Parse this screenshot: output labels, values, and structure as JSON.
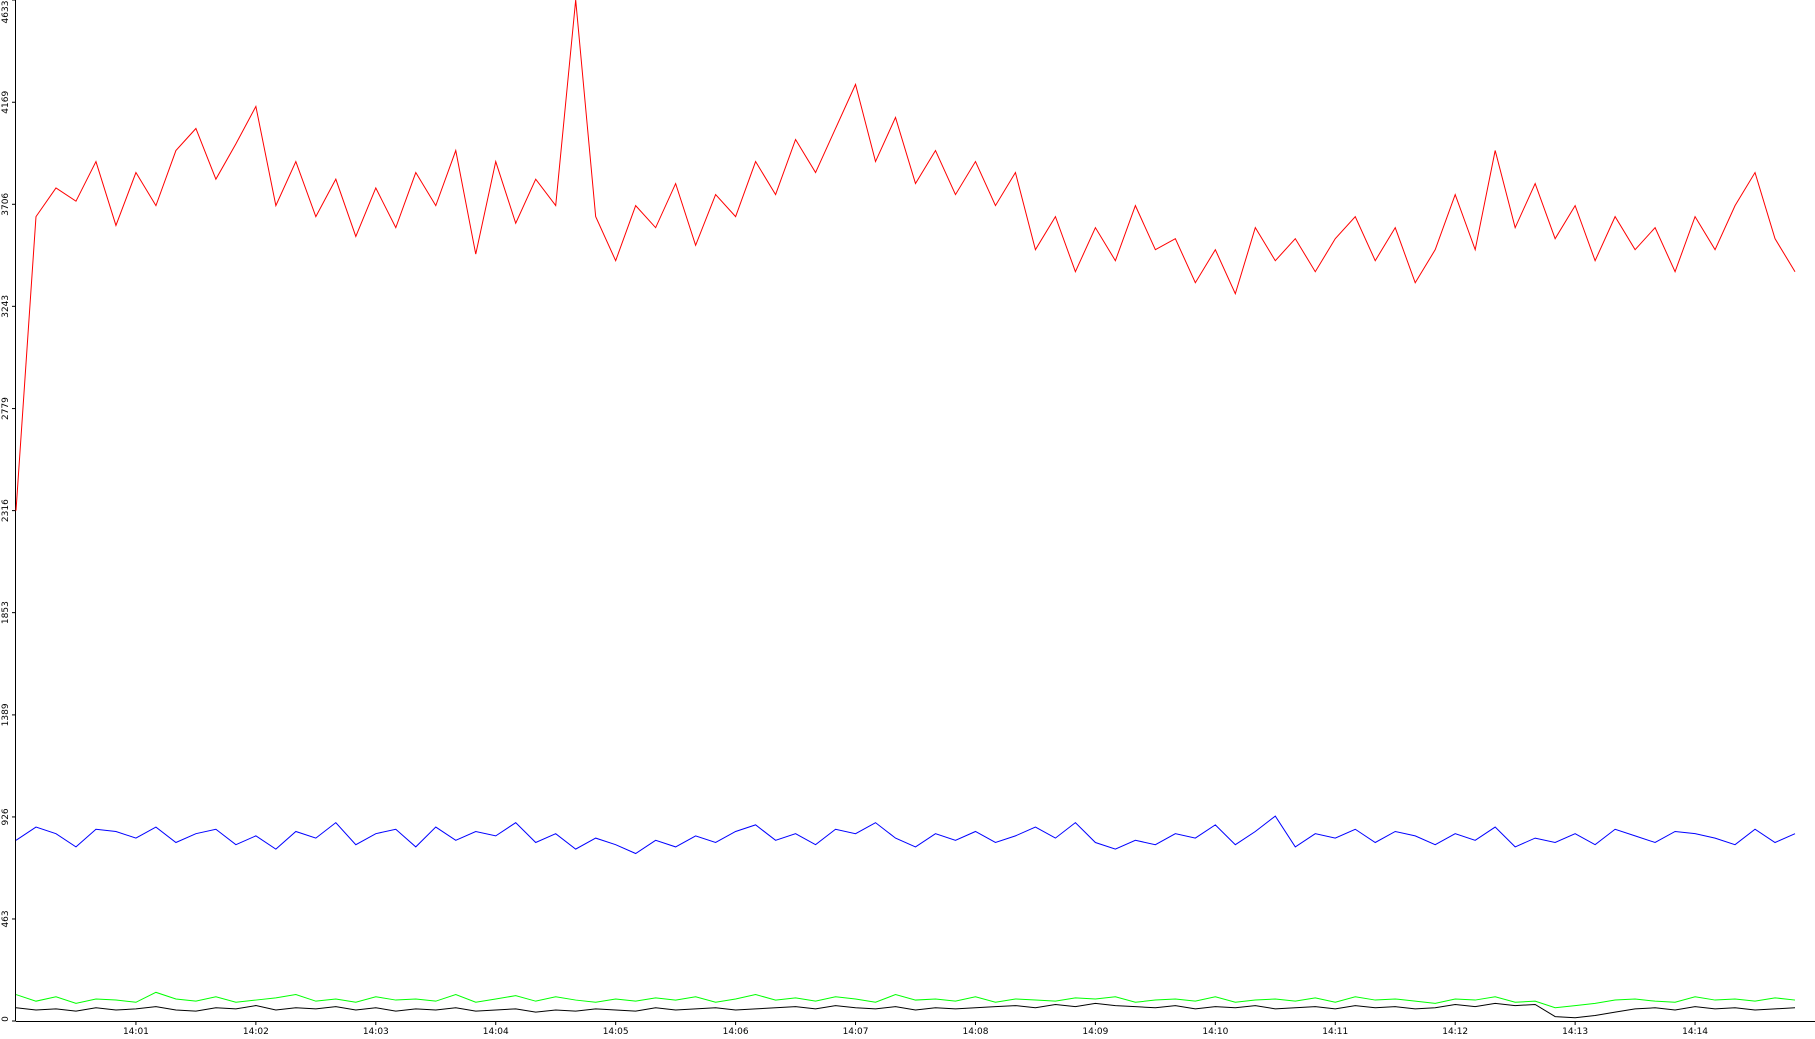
{
  "chart_data": {
    "type": "line",
    "categories": [
      null,
      null,
      null,
      null,
      null,
      null,
      "14:01",
      null,
      null,
      null,
      null,
      null,
      "14:02",
      null,
      null,
      null,
      null,
      null,
      "14:03",
      null,
      null,
      null,
      null,
      null,
      "14:04",
      null,
      null,
      null,
      null,
      null,
      "14:05",
      null,
      null,
      null,
      null,
      null,
      "14:06",
      null,
      null,
      null,
      null,
      null,
      "14:07",
      null,
      null,
      null,
      null,
      null,
      "14:08",
      null,
      null,
      null,
      null,
      null,
      "14:09",
      null,
      null,
      null,
      null,
      null,
      "14:10",
      null,
      null,
      null,
      null,
      null,
      "14:11",
      null,
      null,
      null,
      null,
      null,
      "14:12",
      null,
      null,
      null,
      null,
      null,
      "14:13",
      null,
      null,
      null,
      null,
      null,
      "14:14",
      null,
      null,
      null,
      null,
      null
    ],
    "series": [
      {
        "color": "#ff0000",
        "values": [
          2316,
          3650,
          3780,
          3720,
          3900,
          3610,
          3850,
          3700,
          3950,
          4050,
          3820,
          3980,
          4150,
          3700,
          3900,
          3650,
          3820,
          3560,
          3780,
          3600,
          3850,
          3700,
          3950,
          3480,
          3900,
          3620,
          3820,
          3700,
          4633,
          3650,
          3450,
          3700,
          3600,
          3800,
          3520,
          3750,
          3650,
          3900,
          3750,
          4000,
          3850,
          4050,
          4250,
          3900,
          4100,
          3800,
          3950,
          3750,
          3900,
          3700,
          3850,
          3500,
          3650,
          3400,
          3600,
          3450,
          3700,
          3500,
          3550,
          3350,
          3500,
          3300,
          3600,
          3450,
          3550,
          3400,
          3550,
          3650,
          3450,
          3600,
          3350,
          3500,
          3750,
          3500,
          3950,
          3600,
          3800,
          3550,
          3700,
          3450,
          3650,
          3500,
          3600,
          3400,
          3650,
          3500,
          3700,
          3850,
          3550,
          3400
        ]
      },
      {
        "color": "#0000ff",
        "values": [
          820,
          880,
          850,
          790,
          870,
          860,
          830,
          880,
          810,
          850,
          870,
          800,
          840,
          780,
          860,
          830,
          900,
          800,
          850,
          870,
          790,
          880,
          820,
          860,
          840,
          900,
          810,
          850,
          780,
          830,
          800,
          760,
          820,
          790,
          840,
          810,
          860,
          890,
          820,
          850,
          800,
          870,
          850,
          900,
          830,
          790,
          850,
          820,
          860,
          810,
          840,
          880,
          830,
          900,
          810,
          780,
          820,
          800,
          850,
          830,
          890,
          800,
          860,
          930,
          790,
          850,
          830,
          870,
          810,
          860,
          840,
          800,
          850,
          820,
          880,
          790,
          830,
          810,
          850,
          800,
          870,
          840,
          810,
          860,
          850,
          830,
          800,
          870,
          810,
          850
        ]
      },
      {
        "color": "#00ff00",
        "values": [
          120,
          90,
          110,
          80,
          100,
          95,
          85,
          130,
          100,
          90,
          110,
          85,
          95,
          105,
          120,
          90,
          100,
          85,
          110,
          95,
          100,
          90,
          120,
          85,
          100,
          115,
          90,
          110,
          95,
          85,
          100,
          90,
          105,
          95,
          110,
          85,
          100,
          120,
          95,
          105,
          90,
          110,
          100,
          85,
          120,
          95,
          100,
          90,
          110,
          85,
          100,
          95,
          90,
          105,
          100,
          110,
          85,
          95,
          100,
          90,
          110,
          85,
          95,
          100,
          90,
          105,
          85,
          110,
          95,
          100,
          90,
          80,
          100,
          95,
          110,
          85,
          90,
          60,
          70,
          80,
          95,
          100,
          90,
          85,
          110,
          95,
          100,
          90,
          105,
          95
        ]
      },
      {
        "color": "#000000",
        "values": [
          60,
          50,
          55,
          45,
          60,
          50,
          55,
          65,
          50,
          45,
          60,
          55,
          70,
          50,
          60,
          55,
          65,
          50,
          60,
          45,
          55,
          50,
          60,
          45,
          50,
          55,
          40,
          50,
          45,
          55,
          50,
          45,
          60,
          50,
          55,
          60,
          50,
          55,
          60,
          65,
          55,
          70,
          60,
          55,
          65,
          50,
          60,
          55,
          60,
          65,
          70,
          60,
          75,
          65,
          80,
          70,
          65,
          60,
          70,
          55,
          65,
          60,
          70,
          55,
          60,
          65,
          55,
          70,
          60,
          65,
          55,
          60,
          75,
          65,
          80,
          70,
          75,
          20,
          15,
          25,
          40,
          55,
          60,
          50,
          65,
          55,
          60,
          50,
          55,
          60
        ]
      }
    ],
    "ylim": [
      0,
      4633
    ],
    "yticks": [
      0,
      463,
      926,
      1389,
      1853,
      2316,
      2779,
      3243,
      3706,
      4169,
      4633
    ]
  }
}
